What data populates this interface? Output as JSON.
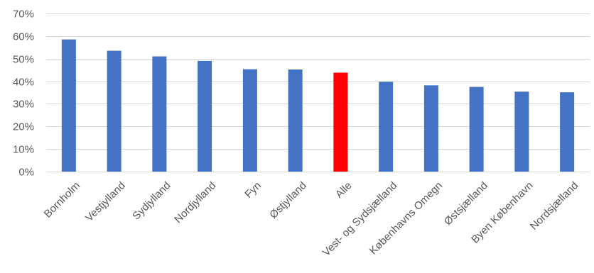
{
  "chart_data": {
    "type": "bar",
    "categories": [
      "Bornholm",
      "Vestjylland",
      "Sydjylland",
      "Nordjylland",
      "Fyn",
      "Østjylland",
      "Alle",
      "Vest- og Sydsjælland",
      "Københavns Omegn",
      "Østsjælland",
      "Byen København",
      "Nordsjælland"
    ],
    "values": [
      58.5,
      53.5,
      51,
      49,
      45.3,
      45.2,
      43.8,
      39.8,
      38.2,
      37.5,
      35.4,
      35.1
    ],
    "highlight_index": 6,
    "colors": {
      "bar": "#4472c4",
      "highlight": "#ff0000"
    },
    "ylim": [
      0,
      70
    ],
    "yticks": [
      "0%",
      "10%",
      "20%",
      "30%",
      "40%",
      "50%",
      "60%",
      "70%"
    ],
    "ytick_values": [
      0,
      10,
      20,
      30,
      40,
      50,
      60,
      70
    ],
    "grid": true,
    "title": "",
    "xlabel": "",
    "ylabel": ""
  }
}
